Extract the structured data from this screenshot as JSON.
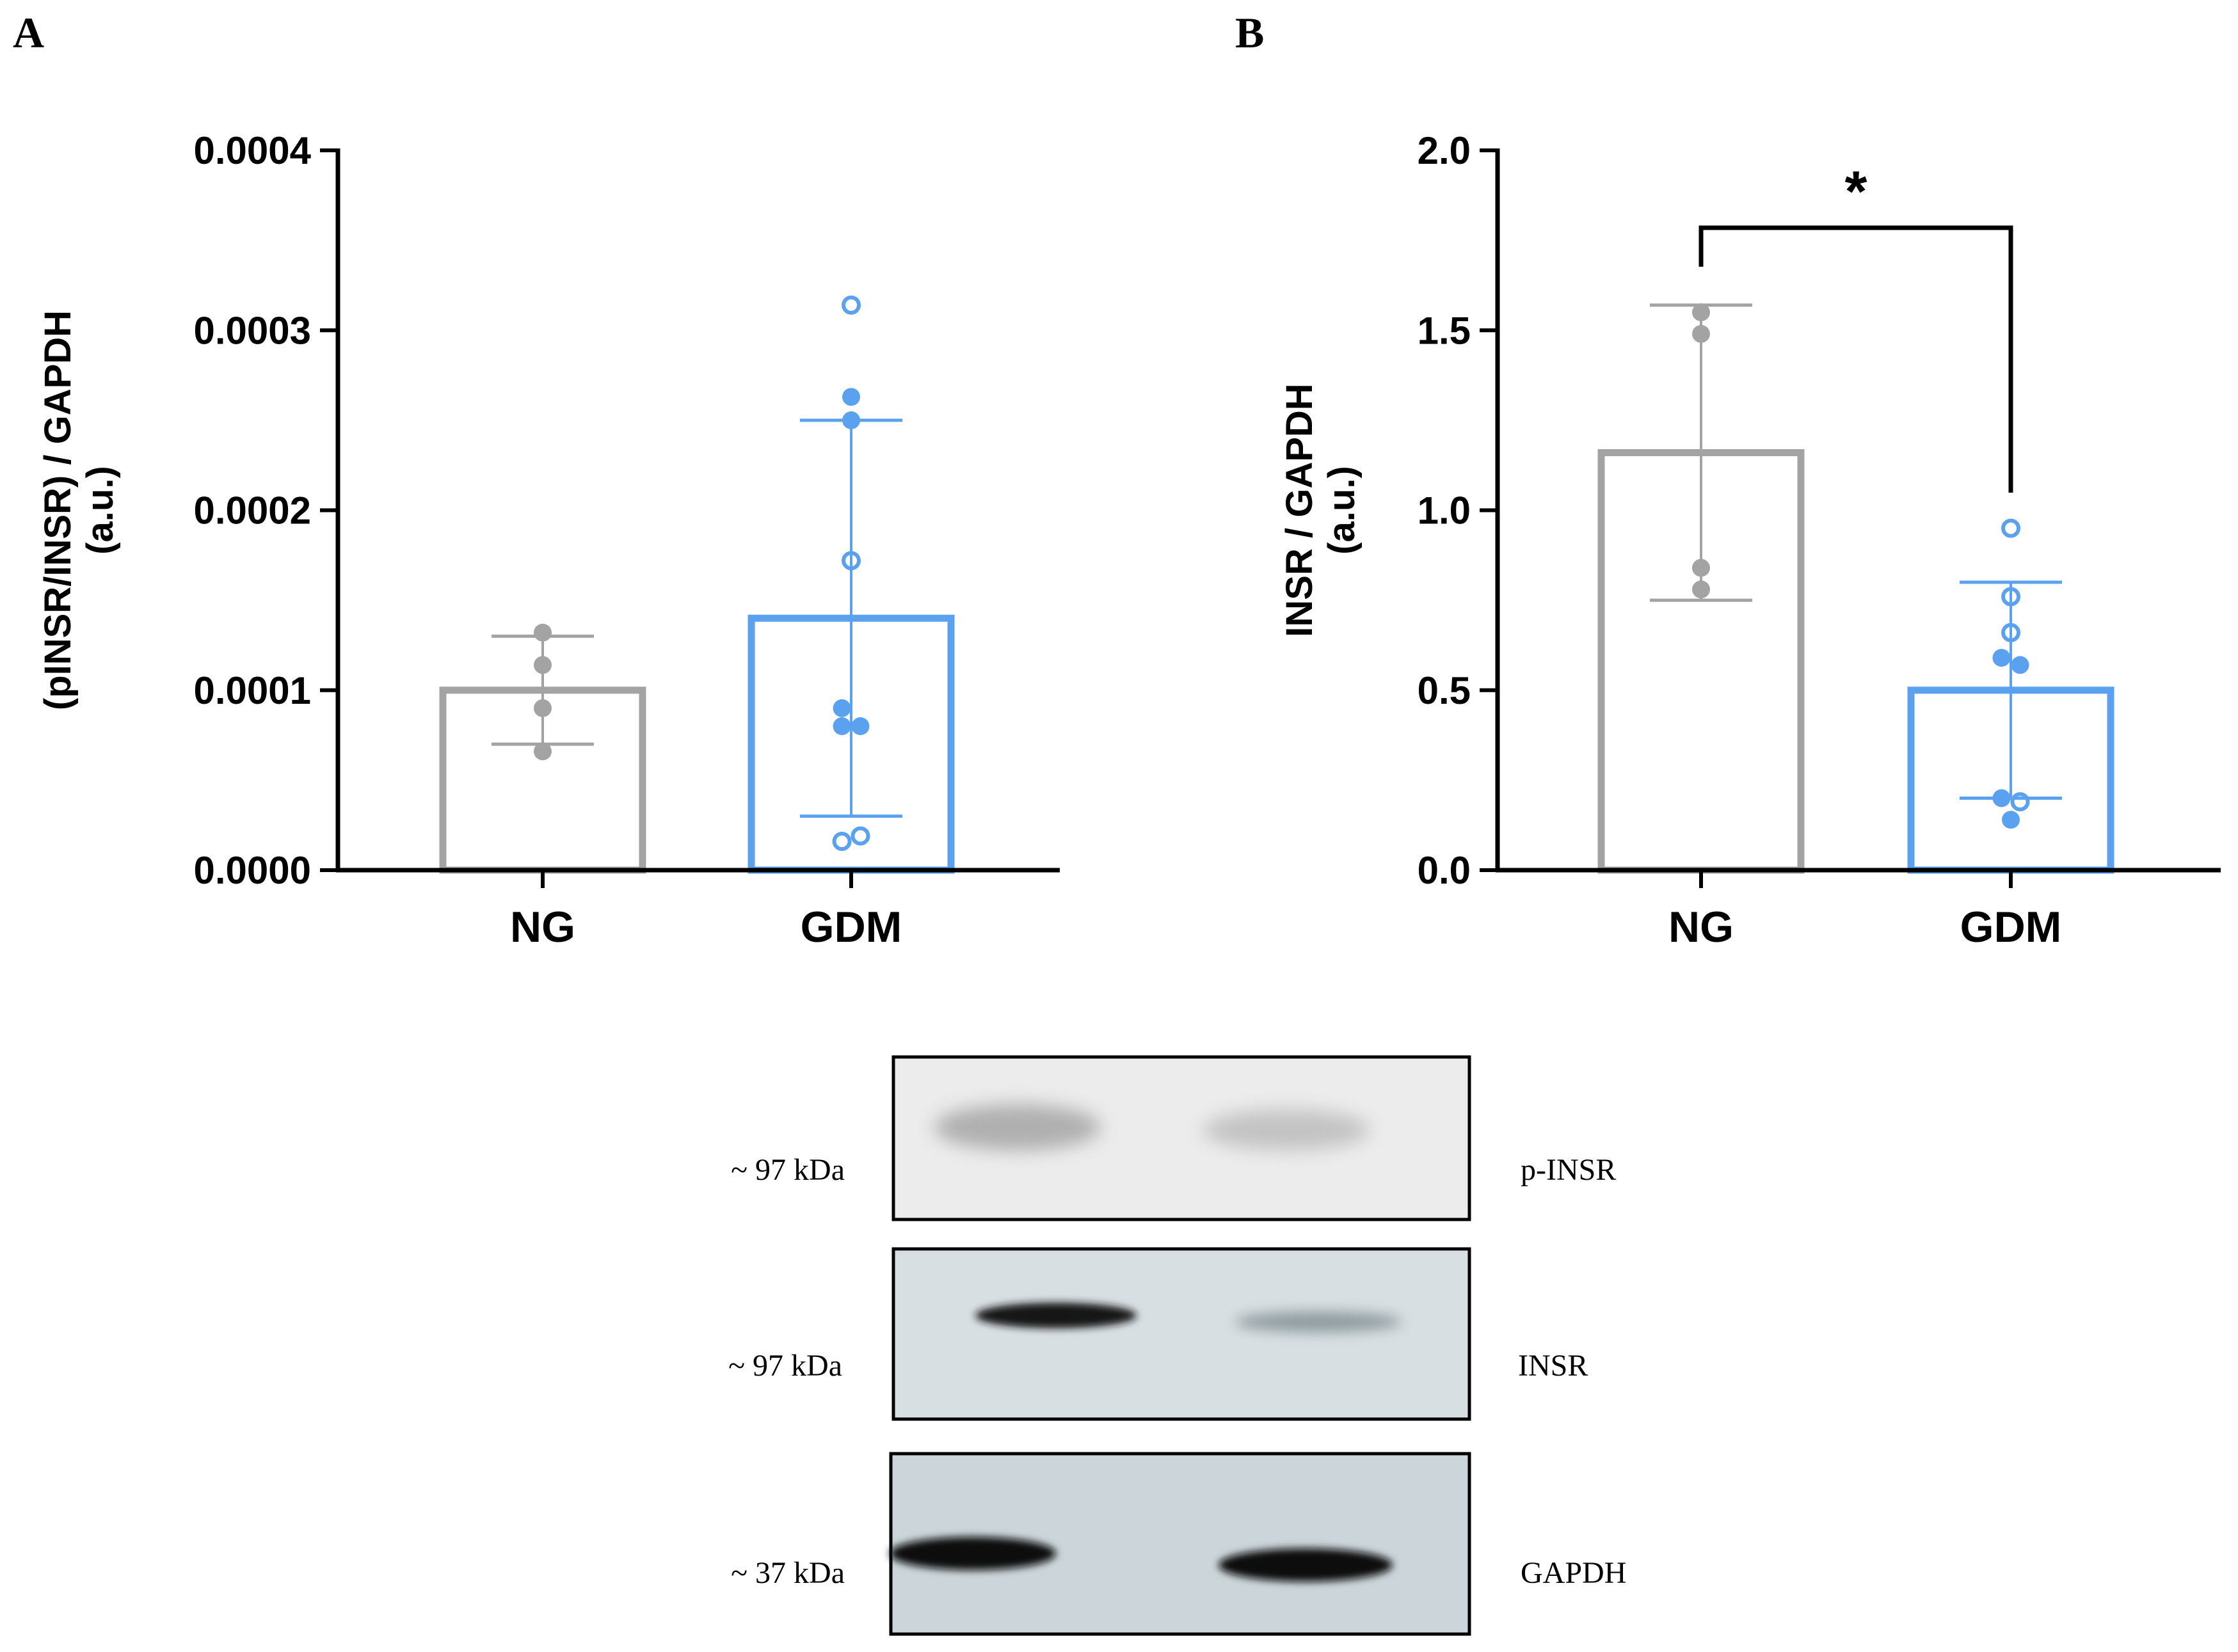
{
  "figure": {
    "panels": [
      "A",
      "B"
    ],
    "colors": {
      "ng": "#a3a3a3",
      "gdm": "#5aa2f0",
      "axis": "#000000"
    }
  },
  "chart_data": [
    {
      "id": "A",
      "type": "bar",
      "categories": [
        "NG",
        "GDM"
      ],
      "values": [
        0.0001,
        0.00014
      ],
      "error": [
        3e-05,
        0.00011
      ],
      "ylabel_lines": [
        "(pINSR/INSR) / GAPDH",
        "(a.u.)"
      ],
      "ylim": [
        0,
        0.0004
      ],
      "yticks": [
        0,
        0.0001,
        0.0002,
        0.0003,
        0.0004
      ],
      "ytick_labels": [
        "0.0000",
        "0.0001",
        "0.0002",
        "0.0003",
        "0.0004"
      ],
      "points": [
        [
          {
            "y": 0.000132,
            "filled": true
          },
          {
            "y": 0.000114,
            "filled": true
          },
          {
            "y": 9e-05,
            "filled": true
          },
          {
            "y": 6.6e-05,
            "filled": true
          }
        ],
        [
          {
            "y": 0.000314,
            "filled": false,
            "dx": 0
          },
          {
            "y": 0.000263,
            "filled": true,
            "dx": 0
          },
          {
            "y": 0.00025,
            "filled": true,
            "dx": 0
          },
          {
            "y": 0.000172,
            "filled": false,
            "dx": 0
          },
          {
            "y": 9e-05,
            "filled": true,
            "dx": -0.15
          },
          {
            "y": 8e-05,
            "filled": true,
            "dx": -0.15
          },
          {
            "y": 8e-05,
            "filled": true,
            "dx": 0.15
          },
          {
            "y": 1.9e-05,
            "filled": false,
            "dx": 0.15
          },
          {
            "y": 1.6e-05,
            "filled": false,
            "dx": -0.15
          }
        ]
      ],
      "significance": null
    },
    {
      "id": "B",
      "type": "bar",
      "categories": [
        "NG",
        "GDM"
      ],
      "values": [
        1.16,
        0.5
      ],
      "error": [
        0.41,
        0.3
      ],
      "ylabel_lines": [
        "INSR / GAPDH",
        "(a.u.)"
      ],
      "ylim": [
        0,
        2.0
      ],
      "yticks": [
        0,
        0.5,
        1.0,
        1.5,
        2.0
      ],
      "ytick_labels": [
        "0.0",
        "0.5",
        "1.0",
        "1.5",
        "2.0"
      ],
      "points": [
        [
          {
            "y": 1.55,
            "filled": true
          },
          {
            "y": 1.49,
            "filled": true
          },
          {
            "y": 0.84,
            "filled": true
          },
          {
            "y": 0.78,
            "filled": true
          }
        ],
        [
          {
            "y": 0.95,
            "filled": false,
            "dx": 0
          },
          {
            "y": 0.76,
            "filled": false,
            "dx": 0
          },
          {
            "y": 0.66,
            "filled": false,
            "dx": 0
          },
          {
            "y": 0.59,
            "filled": true,
            "dx": -0.15
          },
          {
            "y": 0.57,
            "filled": true,
            "dx": 0.15
          },
          {
            "y": 0.2,
            "filled": true,
            "dx": -0.15
          },
          {
            "y": 0.19,
            "filled": false,
            "dx": 0.15
          },
          {
            "y": 0.14,
            "filled": true,
            "dx": 0
          }
        ]
      ],
      "significance": {
        "label": "*"
      }
    }
  ],
  "blot": {
    "bands": [
      {
        "mw": "~ 97 kDa",
        "name": "p-INSR"
      },
      {
        "mw": "~ 97 kDa",
        "name": "INSR"
      },
      {
        "mw": "~ 37 kDa",
        "name": "GAPDH"
      }
    ]
  }
}
